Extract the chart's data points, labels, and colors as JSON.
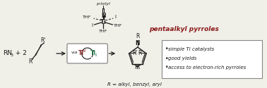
{
  "bg_color": "#f0efe8",
  "text_color": "#1a1a1a",
  "red_color": "#8B1A1A",
  "green_color": "#2e8b57",
  "gray_color": "#888888",
  "bullet_items": [
    "simple Ti catalysts",
    "good yields",
    "access to electron-rich pyrroles"
  ],
  "bottom_label": "R = alkyl, benzyl, aryl",
  "pentaalkyl_label": "pentaalkyl pyrroles"
}
